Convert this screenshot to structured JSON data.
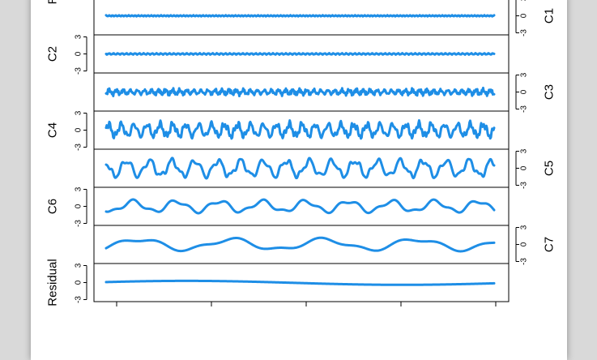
{
  "chart_data": {
    "type": "line",
    "series_color": "#1e8ee6",
    "tick_labels": [
      "3",
      "0",
      "-3"
    ],
    "ylim": [
      -3,
      3
    ],
    "panels": [
      {
        "name": "Raw Data",
        "side": "left",
        "amp": 2.2,
        "freq": 9.0,
        "noise": 1.0
      },
      {
        "name": "C1",
        "side": "right",
        "amp": 0.08,
        "freq": 120,
        "noise": 0.0
      },
      {
        "name": "C2",
        "side": "left",
        "amp": 0.1,
        "freq": 90,
        "noise": 0.0
      },
      {
        "name": "C3",
        "side": "right",
        "amp": 0.35,
        "freq": 55,
        "noise": 0.3
      },
      {
        "name": "C4",
        "side": "left",
        "amp": 1.0,
        "freq": 30,
        "noise": 0.4
      },
      {
        "name": "C5",
        "side": "right",
        "amp": 1.3,
        "freq": 17,
        "noise": 0.2
      },
      {
        "name": "C6",
        "side": "left",
        "amp": 0.9,
        "freq": 9,
        "noise": 0.0
      },
      {
        "name": "C7",
        "side": "right",
        "amp": 0.9,
        "freq": 4.2,
        "noise": 0.0
      },
      {
        "name": "Residual",
        "side": "left",
        "amp": 0.25,
        "freq": 1.0,
        "noise": 0.0
      }
    ]
  }
}
